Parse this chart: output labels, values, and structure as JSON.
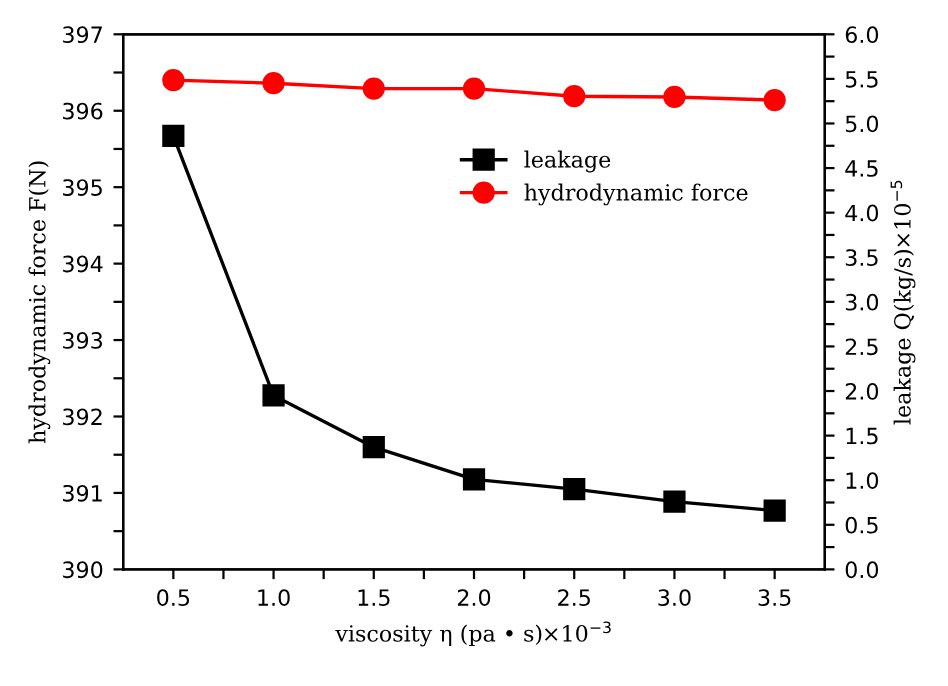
{
  "chart_data": {
    "type": "line",
    "xlabel": "viscosity η (pa • s)×10$^{−3}$",
    "ylabel": "hydrodynamic force F(N)",
    "y2label": "leakage Q(kg/s)×10$^{−5}$",
    "x": [
      0.5,
      1.0,
      1.5,
      2.0,
      2.5,
      3.0,
      3.5
    ],
    "series": [
      {
        "name": "leakage",
        "color": "#000000",
        "axis": "y2",
        "marker": "square",
        "values": [
          4.86,
          1.95,
          1.37,
          1.01,
          0.9,
          0.76,
          0.66
        ]
      },
      {
        "name": "hydrodynamic force",
        "color": "#ff0000",
        "marker": "circle",
        "values": [
          396.4,
          396.36,
          396.29,
          396.29,
          396.19,
          396.18,
          396.14
        ]
      }
    ],
    "xlim": [
      0.25,
      3.75
    ],
    "xticks": [
      {
        "value": 0.5,
        "label": "0.5"
      },
      {
        "value": 0.75,
        "label": null
      },
      {
        "value": 1.0,
        "label": "1.0"
      },
      {
        "value": 1.25,
        "label": null
      },
      {
        "value": 1.5,
        "label": "1.5"
      },
      {
        "value": 1.75,
        "label": null
      },
      {
        "value": 2.0,
        "label": "2.0"
      },
      {
        "value": 2.25,
        "label": null
      },
      {
        "value": 2.5,
        "label": "2.5"
      },
      {
        "value": 2.75,
        "label": null
      },
      {
        "value": 3.0,
        "label": "3.0"
      },
      {
        "value": 3.25,
        "label": null
      },
      {
        "value": 3.5,
        "label": "3.5"
      }
    ],
    "ylim": [
      390,
      397
    ],
    "yticks": [
      390,
      {
        "value": 390.5,
        "label": null
      },
      391,
      {
        "value": 391.5,
        "label": null
      },
      392,
      {
        "value": 392.5,
        "label": null
      },
      393,
      {
        "value": 393.5,
        "label": null
      },
      394,
      {
        "value": 394.5,
        "label": null
      },
      395,
      {
        "value": 395.5,
        "label": null
      },
      396,
      {
        "value": 396.5,
        "label": null
      },
      397
    ],
    "y2lim": [
      0,
      6
    ],
    "y2ticks": [
      {
        "value": 0,
        "label": "0.0"
      },
      {
        "value": 0.25,
        "label": null
      },
      {
        "value": 0.5,
        "label": "0.5"
      },
      {
        "value": 0.75,
        "label": null
      },
      {
        "value": 1,
        "label": "1.0"
      },
      {
        "value": 1.25,
        "label": null
      },
      {
        "value": 1.5,
        "label": "1.5"
      },
      {
        "value": 1.75,
        "label": null
      },
      {
        "value": 2,
        "label": "2.0"
      },
      {
        "value": 2.25,
        "label": null
      },
      {
        "value": 2.5,
        "label": "2.5"
      },
      {
        "value": 2.75,
        "label": null
      },
      {
        "value": 3,
        "label": "3.0"
      },
      {
        "value": 3.25,
        "label": null
      },
      {
        "value": 3.5,
        "label": "3.5"
      },
      {
        "value": 3.75,
        "label": null
      },
      {
        "value": 4,
        "label": "4.0"
      },
      {
        "value": 4.25,
        "label": null
      },
      {
        "value": 4.5,
        "label": "4.5"
      },
      {
        "value": 4.75,
        "label": null
      },
      {
        "value": 5,
        "label": "5.0"
      },
      {
        "value": 5.25,
        "label": null
      },
      {
        "value": 5.5,
        "label": "5.5"
      },
      {
        "value": 5.75,
        "label": null
      },
      {
        "value": 6,
        "label": "6.0"
      }
    ],
    "grid": false,
    "legend": "top right",
    "line_style": "solid"
  }
}
